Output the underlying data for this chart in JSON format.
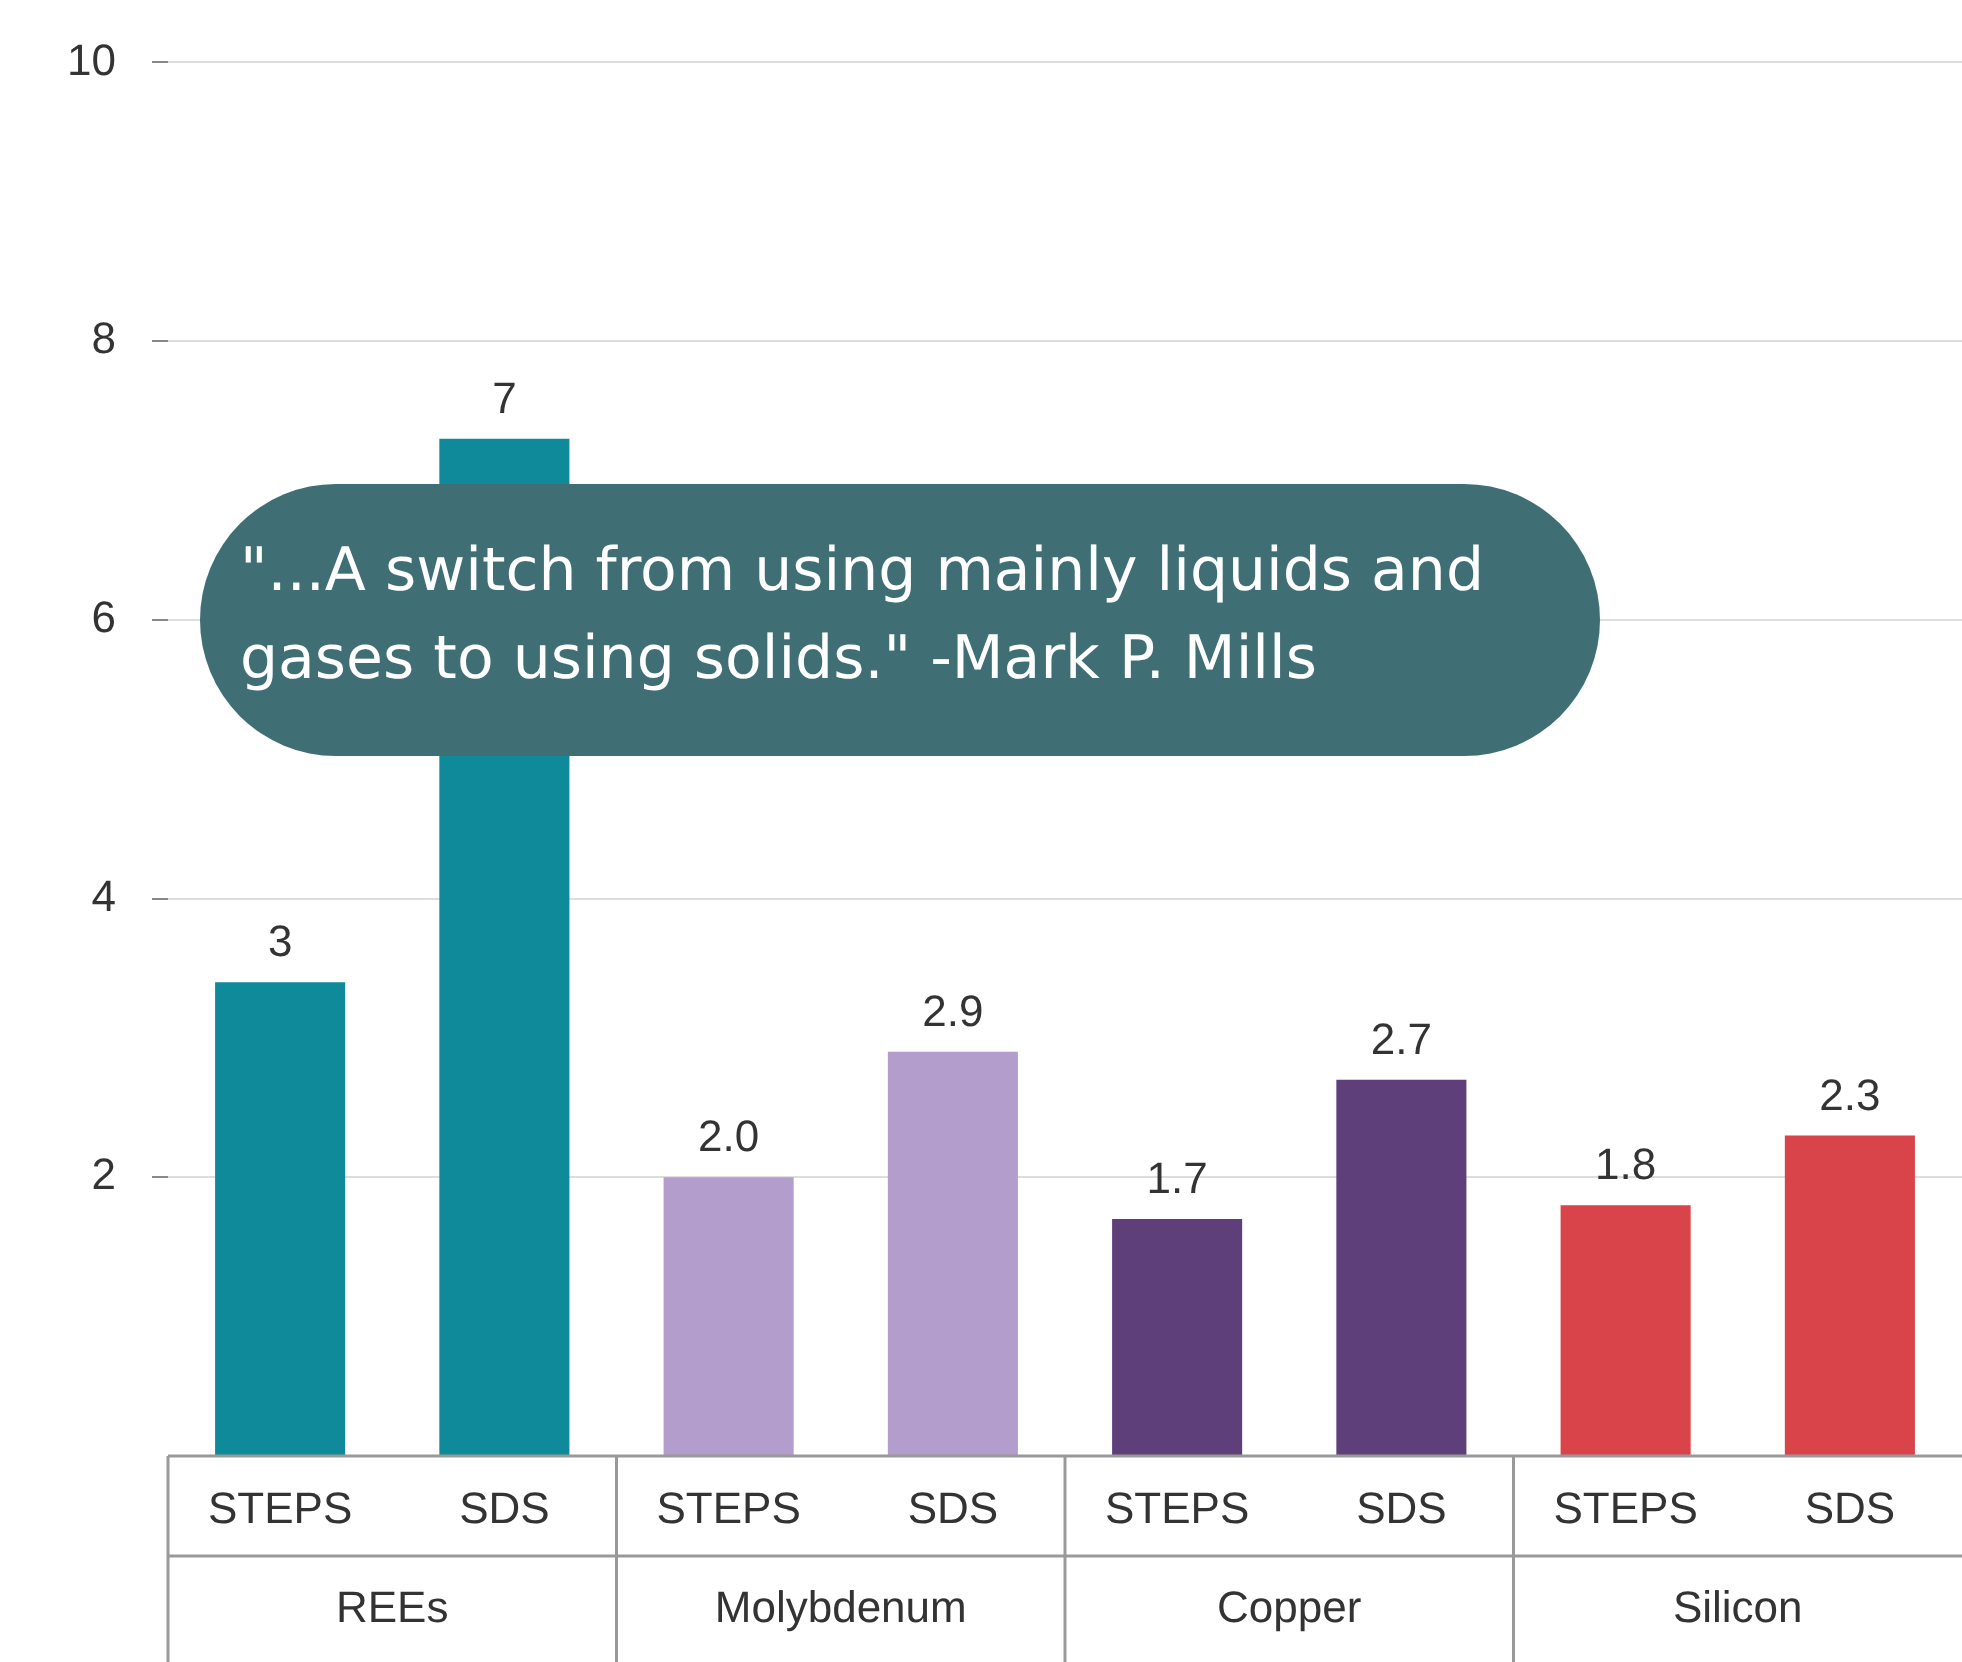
{
  "chart_data": {
    "type": "bar",
    "categories": [
      "STEPS",
      "SDS",
      "STEPS",
      "SDS",
      "STEPS",
      "SDS",
      "STEPS",
      "SDS"
    ],
    "values": [
      3.4,
      7.3,
      2.0,
      2.9,
      1.7,
      2.7,
      1.8,
      2.3
    ],
    "value_labels": [
      "3",
      "7",
      "2.0",
      "2.9",
      "1.7",
      "2.7",
      "1.8",
      "2.3"
    ],
    "colors": [
      "#0e8a9a",
      "#0e8a9a",
      "#b39dcc",
      "#b39dcc",
      "#5e3f7a",
      "#5e3f7a",
      "#d9434a",
      "#d9434a"
    ],
    "ylim": [
      0,
      10
    ],
    "yticks": [
      2,
      4,
      6,
      8,
      10
    ],
    "grid": "y",
    "legend": false,
    "annotations": [
      "\"...A switch from using mainly liquids and gases to using solids.\" -Mark P. Mills",
      "REEs",
      "Molybdenum",
      "Copper",
      "Silicon"
    ]
  }
}
